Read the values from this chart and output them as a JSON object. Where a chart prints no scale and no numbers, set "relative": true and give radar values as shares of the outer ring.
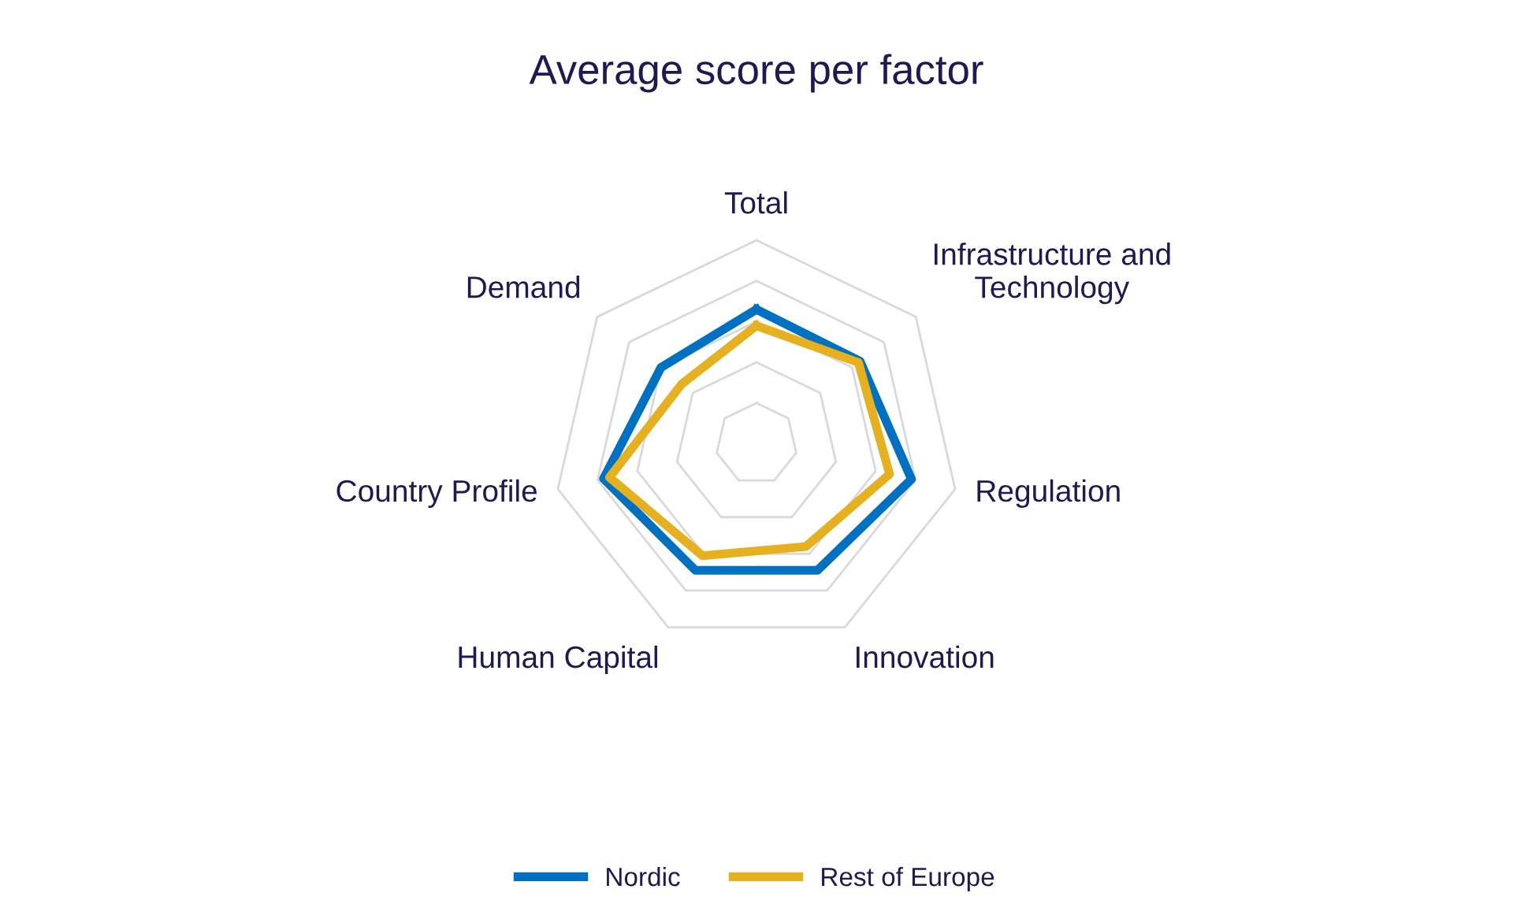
{
  "chart_data": {
    "type": "radar",
    "title": "Average score per factor",
    "relative": true,
    "grid": true,
    "legend": "bottom",
    "marker": "none",
    "line_style": "solid",
    "categories": [
      "Total",
      "Infrastructure and Technology",
      "Regulation",
      "Innovation",
      "Human Capital",
      "Country Profile",
      "Demand"
    ],
    "series": [
      {
        "name": "Nordic",
        "color": "#0070c0",
        "values": [
          0.66,
          0.65,
          0.78,
          0.69,
          0.69,
          0.77,
          0.6
        ]
      },
      {
        "name": "Rest of Europe",
        "color": "#e6b120",
        "values": [
          0.58,
          0.64,
          0.67,
          0.56,
          0.61,
          0.74,
          0.47
        ]
      }
    ]
  }
}
